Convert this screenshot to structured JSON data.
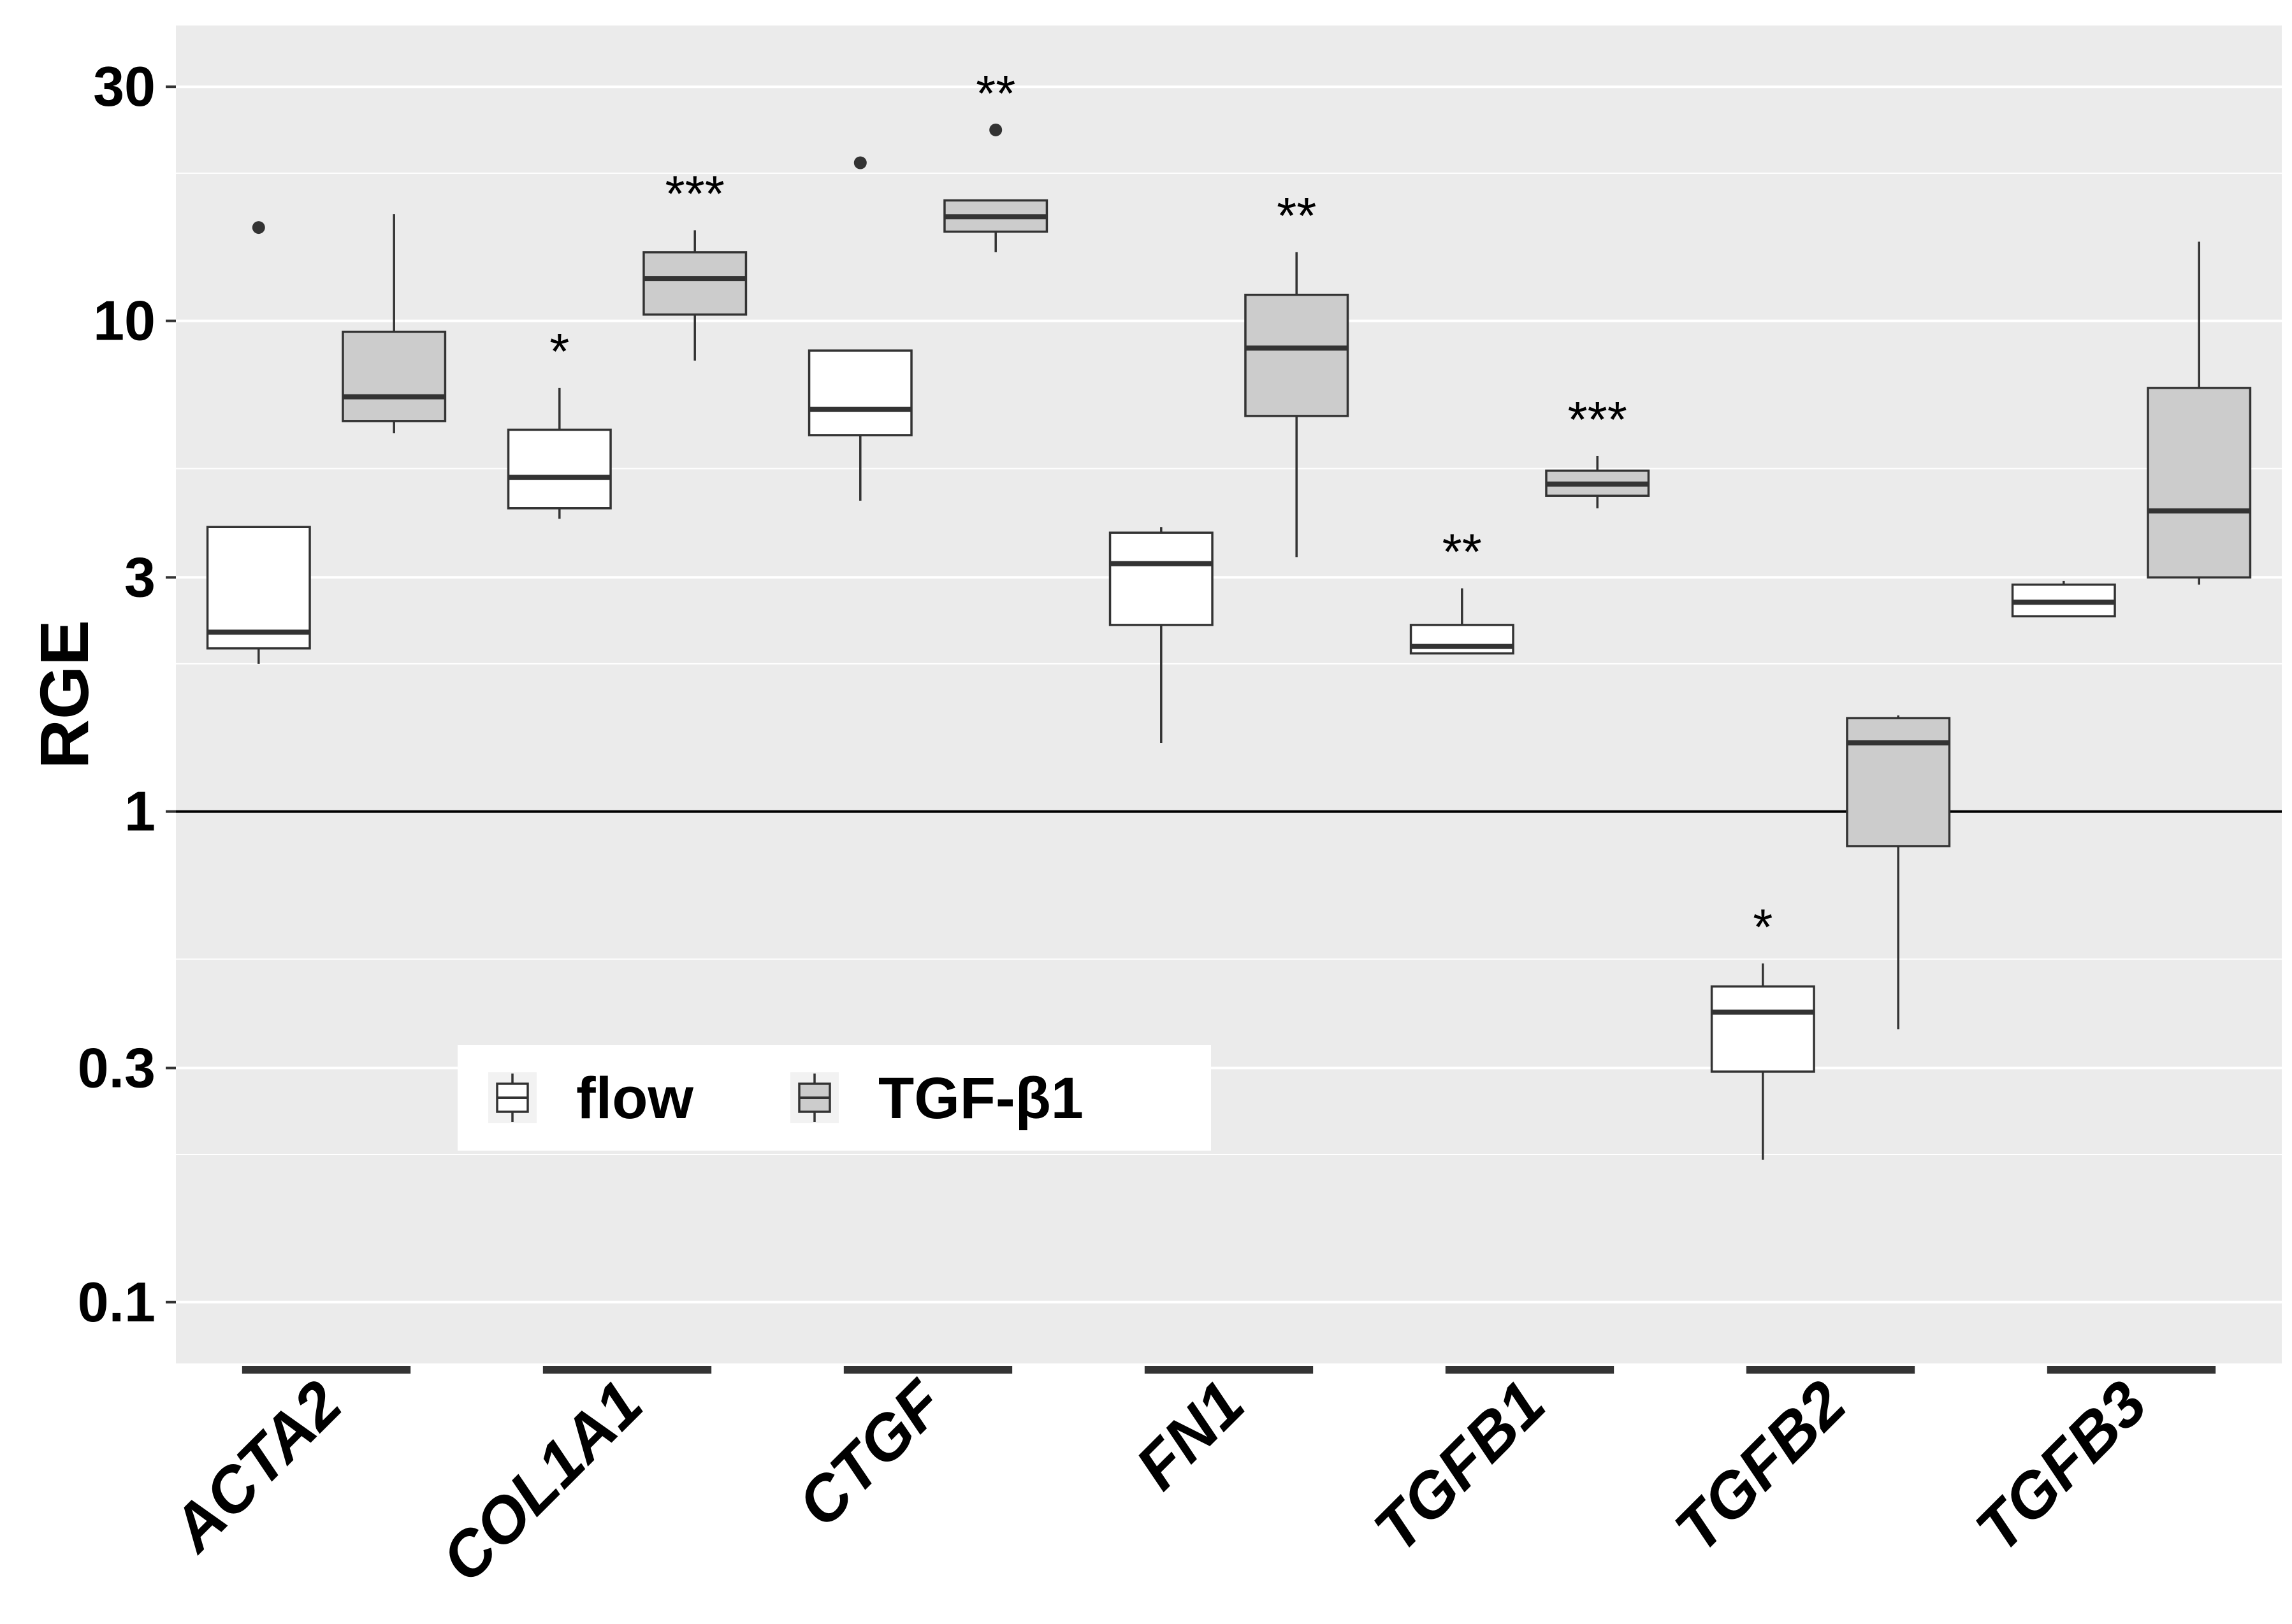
{
  "chart_data": {
    "type": "box",
    "title": "",
    "xlabel": "",
    "ylabel": "RGE",
    "yscale": "log10",
    "ylim": [
      0.075,
      40
    ],
    "yticks": [
      {
        "value": 30,
        "label": "30"
      },
      {
        "value": 10,
        "label": "10"
      },
      {
        "value": 3,
        "label": "3"
      },
      {
        "value": 1,
        "label": "1"
      },
      {
        "value": 0.3,
        "label": "0.3"
      },
      {
        "value": 0.1,
        "label": "0.1"
      }
    ],
    "minor_gridlines": [
      20,
      5,
      2,
      0.5,
      0.2
    ],
    "reference_line": 1,
    "categories": [
      "ACTA2",
      "COL1A1",
      "CTGF",
      "FN1",
      "TGFB1",
      "TGFB2",
      "TGFB3"
    ],
    "legend": {
      "position": "lower-left",
      "entries": [
        {
          "key": "flow",
          "label": "flow",
          "fill": "#ffffff"
        },
        {
          "key": "tgf",
          "label": "TGF-β1",
          "fill": "#cccccc"
        }
      ]
    },
    "colors": {
      "panel": "#ebebeb",
      "grid": "#ffffff",
      "box_stroke": "#333333",
      "flow_fill": "#ffffff",
      "tgf_fill": "#cccccc",
      "axis_text": "#000000"
    },
    "series": [
      {
        "name": "flow",
        "boxes": [
          {
            "category": "ACTA2",
            "lower": 2.0,
            "q1": 2.15,
            "median": 2.32,
            "q3": 3.8,
            "upper": 3.8,
            "outliers": [
              15.5
            ],
            "sig": ""
          },
          {
            "category": "COL1A1",
            "lower": 3.95,
            "q1": 4.15,
            "median": 4.8,
            "q3": 6.0,
            "upper": 7.3,
            "outliers": [],
            "sig": "*"
          },
          {
            "category": "CTGF",
            "lower": 4.3,
            "q1": 5.85,
            "median": 6.6,
            "q3": 8.7,
            "upper": 8.7,
            "outliers": [
              21
            ],
            "sig": ""
          },
          {
            "category": "FN1",
            "lower": 1.38,
            "q1": 2.4,
            "median": 3.2,
            "q3": 3.7,
            "upper": 3.8,
            "outliers": [],
            "sig": ""
          },
          {
            "category": "TGFB1",
            "lower": 2.1,
            "q1": 2.1,
            "median": 2.17,
            "q3": 2.4,
            "upper": 2.85,
            "outliers": [],
            "sig": "**"
          },
          {
            "category": "TGFB2",
            "lower": 0.195,
            "q1": 0.295,
            "median": 0.39,
            "q3": 0.44,
            "upper": 0.49,
            "outliers": [],
            "sig": "*"
          },
          {
            "category": "TGFB3",
            "lower": 2.5,
            "q1": 2.5,
            "median": 2.67,
            "q3": 2.9,
            "upper": 2.95,
            "outliers": [],
            "sig": ""
          }
        ]
      },
      {
        "name": "TGF-β1",
        "boxes": [
          {
            "category": "ACTA2",
            "lower": 5.9,
            "q1": 6.25,
            "median": 7.0,
            "q3": 9.5,
            "upper": 16.5,
            "outliers": [],
            "sig": ""
          },
          {
            "category": "COL1A1",
            "lower": 8.3,
            "q1": 10.3,
            "median": 12.2,
            "q3": 13.8,
            "upper": 15.3,
            "outliers": [],
            "sig": "***"
          },
          {
            "category": "CTGF",
            "lower": 13.8,
            "q1": 15.2,
            "median": 16.3,
            "q3": 17.6,
            "upper": 17.6,
            "outliers": [
              24.5
            ],
            "sig": "**"
          },
          {
            "category": "FN1",
            "lower": 3.3,
            "q1": 6.4,
            "median": 8.8,
            "q3": 11.3,
            "upper": 13.8,
            "outliers": [],
            "sig": "**"
          },
          {
            "category": "TGFB1",
            "lower": 4.15,
            "q1": 4.4,
            "median": 4.65,
            "q3": 4.95,
            "upper": 5.3,
            "outliers": [],
            "sig": "***"
          },
          {
            "category": "TGFB2",
            "lower": 0.36,
            "q1": 0.85,
            "median": 1.38,
            "q3": 1.55,
            "upper": 1.57,
            "outliers": [],
            "sig": ""
          },
          {
            "category": "TGFB3",
            "lower": 2.9,
            "q1": 3.0,
            "median": 4.1,
            "q3": 7.3,
            "upper": 14.5,
            "outliers": [],
            "sig": ""
          }
        ]
      }
    ]
  }
}
